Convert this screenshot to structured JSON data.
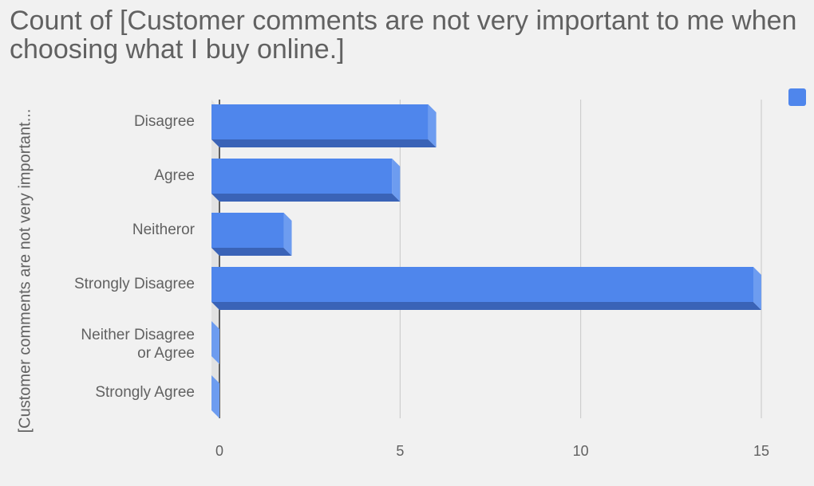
{
  "chart_data": {
    "type": "bar",
    "orientation": "horizontal",
    "style": "3d",
    "title": "Count of  [Customer comments are not very important to me when choosing what I buy online.]",
    "ylabel": "[Customer comments are not very important...",
    "xlabel": "",
    "categories": [
      "Disagree",
      "Agree",
      "Neitheror",
      "Strongly Disagree",
      "Neither Disagree or Agree",
      "Strongly Agree"
    ],
    "series": [
      {
        "name": "",
        "values": [
          6,
          5,
          2,
          15,
          0,
          0
        ]
      }
    ],
    "xlim": [
      0,
      15
    ],
    "xticks": [
      0,
      5,
      10,
      15
    ],
    "grid": true,
    "legend_position": "top-right",
    "colors": {
      "bar_front": "#4f86ec",
      "bar_side": "#6d9cf0",
      "bar_bottom": "#3a63b7",
      "grid": "#c8c8c8",
      "text": "#616161"
    }
  }
}
